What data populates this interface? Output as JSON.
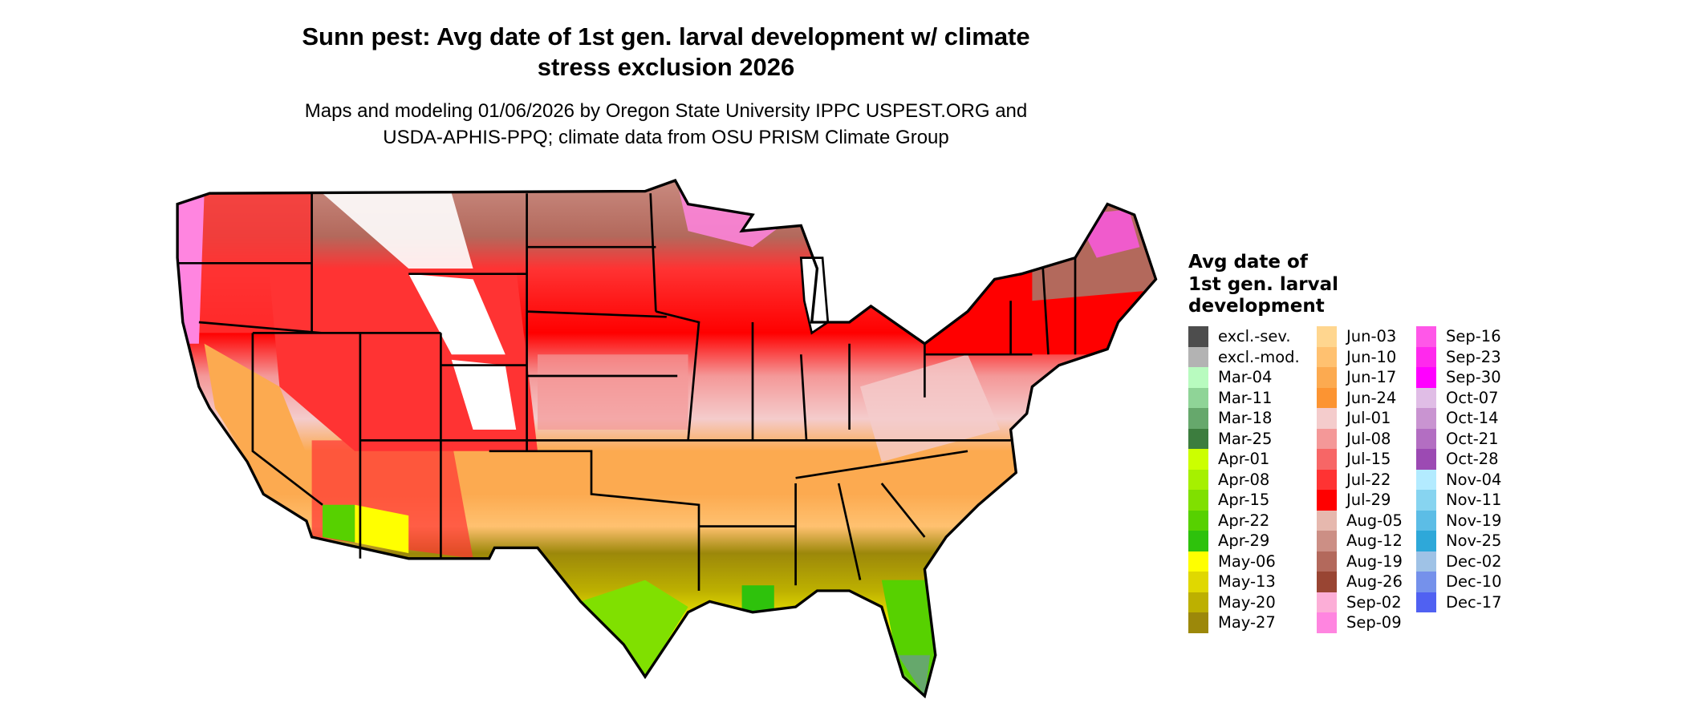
{
  "title": {
    "line1": "Sunn pest: Avg date of 1st gen. larval development w/ climate",
    "line2": "stress exclusion 2026"
  },
  "subtitle": {
    "line1": "Maps and modeling 01/06/2026 by Oregon State University IPPC USPEST.ORG and",
    "line2": "USDA-APHIS-PPQ; climate data from OSU PRISM Climate Group"
  },
  "legend": {
    "title": [
      "Avg date of",
      "1st gen. larval",
      "development"
    ],
    "columns": [
      [
        {
          "label": "excl.-sev.",
          "color": "#4d4d4d"
        },
        {
          "label": "excl.-mod.",
          "color": "#b3b3b3"
        },
        {
          "label": "Mar-04",
          "color": "#b8fbbf"
        },
        {
          "label": "Mar-11",
          "color": "#8fd497"
        },
        {
          "label": "Mar-18",
          "color": "#66a86c"
        },
        {
          "label": "Mar-25",
          "color": "#3c7d3e"
        },
        {
          "label": "Apr-01",
          "color": "#ccff00"
        },
        {
          "label": "Apr-08",
          "color": "#a6f000"
        },
        {
          "label": "Apr-15",
          "color": "#80e000"
        },
        {
          "label": "Apr-22",
          "color": "#57d100"
        },
        {
          "label": "Apr-29",
          "color": "#2ec20c"
        },
        {
          "label": "May-06",
          "color": "#ffff00"
        },
        {
          "label": "May-13",
          "color": "#e0d800"
        },
        {
          "label": "May-20",
          "color": "#bdb000"
        },
        {
          "label": "May-27",
          "color": "#9c880a"
        }
      ],
      [
        {
          "label": "Jun-03",
          "color": "#ffd68f"
        },
        {
          "label": "Jun-10",
          "color": "#ffc170"
        },
        {
          "label": "Jun-17",
          "color": "#fcaa50"
        },
        {
          "label": "Jun-24",
          "color": "#fc9432"
        },
        {
          "label": "Jul-01",
          "color": "#f4cccc"
        },
        {
          "label": "Jul-08",
          "color": "#f49898"
        },
        {
          "label": "Jul-15",
          "color": "#f76666"
        },
        {
          "label": "Jul-22",
          "color": "#ff3333"
        },
        {
          "label": "Jul-29",
          "color": "#ff0000"
        },
        {
          "label": "Aug-05",
          "color": "#e6b8ae"
        },
        {
          "label": "Aug-12",
          "color": "#cc8f85"
        },
        {
          "label": "Aug-19",
          "color": "#b3695c"
        },
        {
          "label": "Aug-26",
          "color": "#994533"
        },
        {
          "label": "Sep-02",
          "color": "#fcaed7"
        },
        {
          "label": "Sep-09",
          "color": "#ff85e0"
        }
      ],
      [
        {
          "label": "Sep-16",
          "color": "#ff57e8"
        },
        {
          "label": "Sep-23",
          "color": "#ff29ed"
        },
        {
          "label": "Sep-30",
          "color": "#ff00ff"
        },
        {
          "label": "Oct-07",
          "color": "#e0bde6"
        },
        {
          "label": "Oct-14",
          "color": "#c994d1"
        },
        {
          "label": "Oct-21",
          "color": "#b36ec2"
        },
        {
          "label": "Oct-28",
          "color": "#9c4ab3"
        },
        {
          "label": "Nov-04",
          "color": "#b3ebff"
        },
        {
          "label": "Nov-11",
          "color": "#87d4f0"
        },
        {
          "label": "Nov-19",
          "color": "#5cbde6"
        },
        {
          "label": "Nov-25",
          "color": "#2ea8d9"
        },
        {
          "label": "Dec-02",
          "color": "#9fc2e6"
        },
        {
          "label": "Dec-10",
          "color": "#7591eb"
        },
        {
          "label": "Dec-17",
          "color": "#5061f2"
        }
      ]
    ]
  }
}
